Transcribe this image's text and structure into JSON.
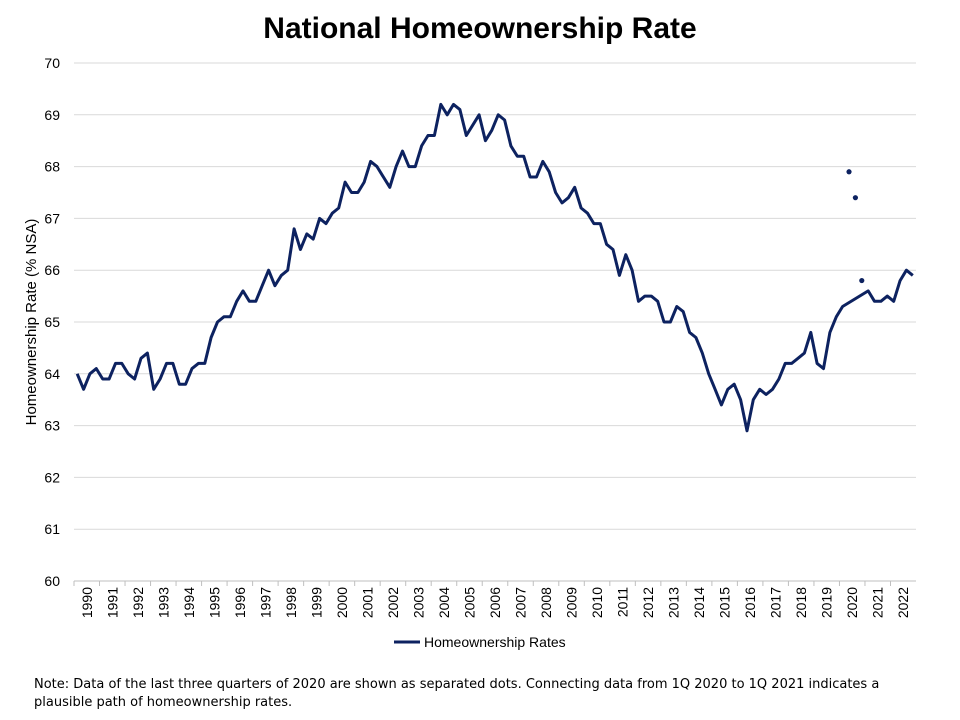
{
  "colors": {
    "series": "#0d2260",
    "grid": "#d9d9d9",
    "axis": "#bfbfbf"
  },
  "chart_data": {
    "type": "line",
    "title": "National Homeownership Rate",
    "xlabel": "",
    "ylabel": "Homeownership Rate (% NSA)",
    "ylim": [
      60,
      70
    ],
    "yticks": [
      60,
      61,
      62,
      63,
      64,
      65,
      66,
      67,
      68,
      69,
      70
    ],
    "xticks": [
      "1990",
      "1991",
      "1992",
      "1993",
      "1994",
      "1995",
      "1996",
      "1997",
      "1998",
      "1999",
      "2000",
      "2001",
      "2002",
      "2003",
      "2004",
      "2005",
      "2006",
      "2007",
      "2008",
      "2009",
      "2010",
      "2011",
      "2012",
      "2013",
      "2014",
      "2015",
      "2016",
      "2017",
      "2018",
      "2019",
      "2020",
      "2021",
      "2022"
    ],
    "x_start": "1990-Q1",
    "grid": "horizontal",
    "legend_position": "bottom",
    "series": [
      {
        "name": "Homeownership Rates",
        "values": [
          64.0,
          63.7,
          64.0,
          64.1,
          63.9,
          63.9,
          64.2,
          64.2,
          64.0,
          63.9,
          64.3,
          64.4,
          63.7,
          63.9,
          64.2,
          64.2,
          63.8,
          63.8,
          64.1,
          64.2,
          64.2,
          64.7,
          65.0,
          65.1,
          65.1,
          65.4,
          65.6,
          65.4,
          65.4,
          65.7,
          66.0,
          65.7,
          65.9,
          66.0,
          66.8,
          66.4,
          66.7,
          66.6,
          67.0,
          66.9,
          67.1,
          67.2,
          67.7,
          67.5,
          67.5,
          67.7,
          68.1,
          68.0,
          67.8,
          67.6,
          68.0,
          68.3,
          68.0,
          68.0,
          68.4,
          68.6,
          68.6,
          69.2,
          69.0,
          69.2,
          69.1,
          68.6,
          68.8,
          69.0,
          68.5,
          68.7,
          69.0,
          68.9,
          68.4,
          68.2,
          68.2,
          67.8,
          67.8,
          68.1,
          67.9,
          67.5,
          67.3,
          67.4,
          67.6,
          67.2,
          67.1,
          66.9,
          66.9,
          66.5,
          66.4,
          65.9,
          66.3,
          66.0,
          65.4,
          65.5,
          65.5,
          65.4,
          65.0,
          65.0,
          65.3,
          65.2,
          64.8,
          64.7,
          64.4,
          64.0,
          63.7,
          63.4,
          63.7,
          63.8,
          63.5,
          62.9,
          63.5,
          63.7,
          63.6,
          63.7,
          63.9,
          64.2,
          64.2,
          64.3,
          64.4,
          64.8,
          64.2,
          64.1,
          64.8,
          65.1,
          65.3,
          null,
          null,
          null,
          65.6,
          65.4,
          65.4,
          65.5,
          65.4,
          65.8,
          66.0,
          65.9
        ],
        "interpolated": [
          {
            "from_index": 120,
            "to_index": 124
          }
        ]
      },
      {
        "name": "",
        "style": "dots",
        "points": [
          {
            "index": 121,
            "value": 67.9
          },
          {
            "index": 122,
            "value": 67.4
          },
          {
            "index": 123,
            "value": 65.8
          }
        ]
      }
    ]
  },
  "note": "Note: Data of the last three quarters of 2020 are shown as separated dots. Connecting data from 1Q 2020 to 1Q 2021 indicates a plausible path of homeownership rates."
}
